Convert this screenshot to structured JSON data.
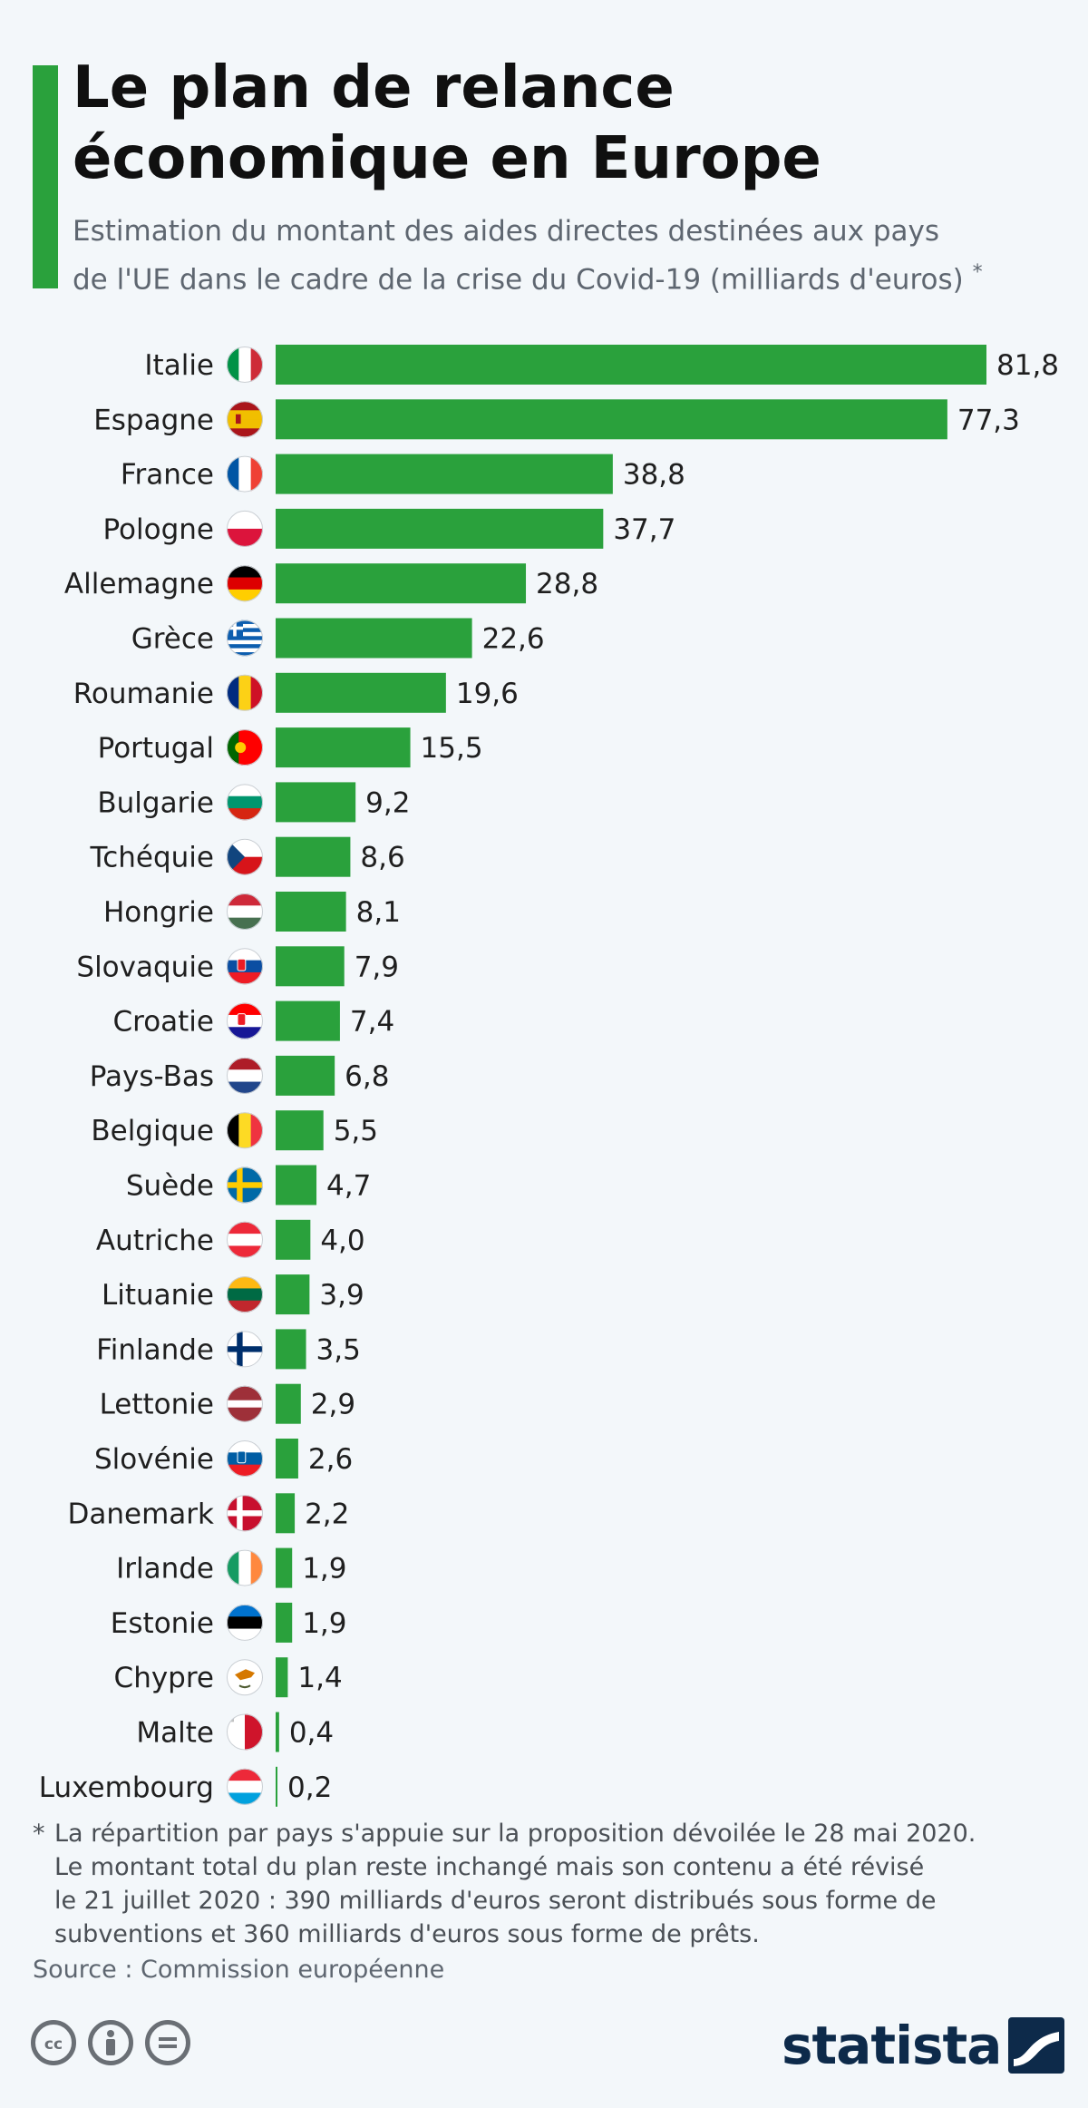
{
  "header": {
    "title_line1": "Le plan de relance",
    "title_line2": "économique en Europe",
    "subtitle_line1": "Estimation du montant des aides directes destinées aux pays",
    "subtitle_line2": "de l'UE dans le cadre de la crise du Covid-19 (milliards d'euros)",
    "subtitle_mark": "*"
  },
  "chart_data": {
    "type": "bar",
    "orientation": "horizontal",
    "categories": [
      "Italie",
      "Espagne",
      "France",
      "Pologne",
      "Allemagne",
      "Grèce",
      "Roumanie",
      "Portugal",
      "Bulgarie",
      "Tchéquie",
      "Hongrie",
      "Slovaquie",
      "Croatie",
      "Pays-Bas",
      "Belgique",
      "Suède",
      "Autriche",
      "Lituanie",
      "Finlande",
      "Lettonie",
      "Slovénie",
      "Danemark",
      "Irlande",
      "Estonie",
      "Chypre",
      "Malte",
      "Luxembourg"
    ],
    "values": [
      81.8,
      77.3,
      38.8,
      37.7,
      28.8,
      22.6,
      19.6,
      15.5,
      9.2,
      8.6,
      8.1,
      7.9,
      7.4,
      6.8,
      5.5,
      4.7,
      4.0,
      3.9,
      3.5,
      2.9,
      2.6,
      2.2,
      1.9,
      1.9,
      1.4,
      0.4,
      0.2
    ],
    "value_labels": [
      "81,8",
      "77,3",
      "38,8",
      "37,7",
      "28,8",
      "22,6",
      "19,6",
      "15,5",
      "9,2",
      "8,6",
      "8,1",
      "7,9",
      "7,4",
      "6,8",
      "5,5",
      "4,7",
      "4,0",
      "3,9",
      "3,5",
      "2,9",
      "2,6",
      "2,2",
      "1,9",
      "1,9",
      "1,4",
      "0,4",
      "0,2"
    ],
    "flags": [
      "italy-flag-icon",
      "spain-flag-icon",
      "france-flag-icon",
      "poland-flag-icon",
      "germany-flag-icon",
      "greece-flag-icon",
      "romania-flag-icon",
      "portugal-flag-icon",
      "bulgaria-flag-icon",
      "czechia-flag-icon",
      "hungary-flag-icon",
      "slovakia-flag-icon",
      "croatia-flag-icon",
      "netherlands-flag-icon",
      "belgium-flag-icon",
      "sweden-flag-icon",
      "austria-flag-icon",
      "lithuania-flag-icon",
      "finland-flag-icon",
      "latvia-flag-icon",
      "slovenia-flag-icon",
      "denmark-flag-icon",
      "ireland-flag-icon",
      "estonia-flag-icon",
      "cyprus-flag-icon",
      "malta-flag-icon",
      "luxembourg-flag-icon"
    ],
    "bar_color": "#2aa13c",
    "xlim": [
      0,
      81.8
    ],
    "grid": false,
    "legend": "none"
  },
  "footnote": {
    "mark": "*",
    "lines": [
      "La répartition par pays s'appuie sur la proposition dévoilée le 28 mai 2020.",
      "Le montant total du plan reste inchangé mais son contenu a été révisé",
      "le 21 juillet 2020 : 390 milliards d'euros seront distribués sous forme de",
      "subventions et 360 milliards d'euros sous forme de prêts."
    ]
  },
  "source": "Source : Commission européenne",
  "brand": {
    "logo_text": "statista",
    "license_icons": [
      "cc-icon",
      "by-attribution-icon",
      "no-derivatives-icon"
    ],
    "accent_color": "#2aa13c",
    "logo_color": "#0d2a4a"
  }
}
